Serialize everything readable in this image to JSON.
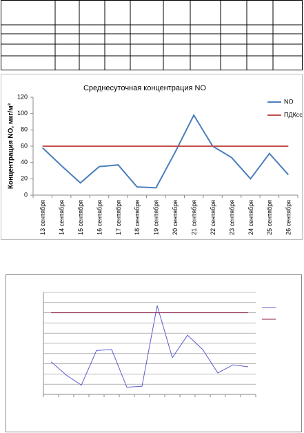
{
  "chart_data": [
    {
      "type": "line",
      "title": "Среднесуточная концентрация NO",
      "y_label": "Концентрация NO, мкг/м³",
      "categories": [
        "13 сентября",
        "14 сентября",
        "15 сентября",
        "16 сентября",
        "17 сентября",
        "18 сентября",
        "19 сентября",
        "20 сентября",
        "21 сентября",
        "22 сентября",
        "23 сентября",
        "24 сентября",
        "25 сентября",
        "26 сентября"
      ],
      "series": [
        {
          "name": "NO",
          "color": "#4a7ebb",
          "values": [
            58,
            36,
            15,
            35,
            37,
            10,
            9,
            52,
            98,
            60,
            46,
            20,
            51,
            25
          ]
        },
        {
          "name": "ПДКсс",
          "color": "#c0504d",
          "values": [
            60,
            60,
            60,
            60,
            60,
            60,
            60,
            60,
            60,
            60,
            60,
            60,
            60,
            60
          ]
        }
      ],
      "ylim": [
        0,
        120
      ],
      "yticks": [
        0,
        20,
        40,
        60,
        80,
        100,
        120
      ],
      "legend": "right"
    },
    {
      "type": "line",
      "series": [
        {
          "color": "#5a5ad0",
          "values": [
            32,
            19,
            9,
            43,
            44,
            7,
            8,
            87,
            36,
            58,
            44,
            21,
            29,
            27
          ]
        },
        {
          "color": "#8b1a4a",
          "values": [
            80,
            80,
            80,
            80,
            80,
            80,
            80,
            80,
            80,
            80,
            80,
            80,
            80,
            80
          ]
        }
      ],
      "ylim": [
        0,
        100
      ],
      "yticks": [
        0,
        10,
        20,
        30,
        40,
        50,
        60,
        70,
        80,
        90,
        100
      ],
      "grid": true,
      "legend": "right"
    }
  ]
}
